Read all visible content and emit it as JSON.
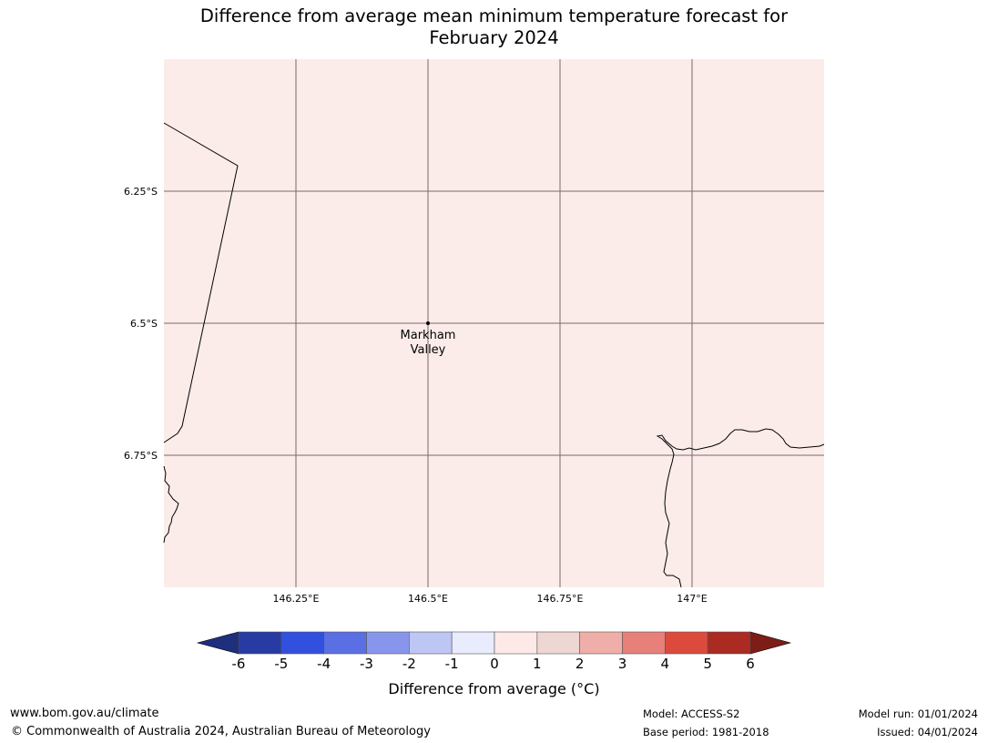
{
  "title_line1": "Difference from average mean minimum temperature forecast for",
  "title_line2": "February 2024",
  "map": {
    "lon_range": [
      146.0,
      147.25
    ],
    "lat_range": [
      -6.0,
      -7.0
    ],
    "background_color": "#fbecea",
    "lat_gridlines": [
      {
        "lat": -6.25,
        "label": "6.25°S"
      },
      {
        "lat": -6.5,
        "label": "6.5°S"
      },
      {
        "lat": -6.75,
        "label": "6.75°S"
      }
    ],
    "lon_gridlines": [
      {
        "lon": 146.25,
        "label": "146.25°E"
      },
      {
        "lon": 146.5,
        "label": "146.5°E"
      },
      {
        "lon": 146.75,
        "label": "146.75°E"
      },
      {
        "lon": 147.0,
        "label": "147°E"
      }
    ],
    "location": {
      "name_line1": "Markham",
      "name_line2": "Valley",
      "lon": 146.5,
      "lat": -6.5
    }
  },
  "colorbar": {
    "label": "Difference from average (°C)",
    "ticks": [
      "-6",
      "-5",
      "-4",
      "-3",
      "-2",
      "-1",
      "0",
      "1",
      "2",
      "3",
      "4",
      "5",
      "6"
    ],
    "bins": [
      "#273ba3",
      "#3150de",
      "#5a6fe4",
      "#8796ec",
      "#bec6f4",
      "#e9ecfc",
      "#fde9e8",
      "#eed6d2",
      "#efaea8",
      "#e68078",
      "#dc4a3e",
      "#ab2a21"
    ],
    "under_color": "#1e2f7e",
    "over_color": "#7d1d18"
  },
  "footer": {
    "website": "www.bom.gov.au/climate",
    "copyright": "© Commonwealth of Australia 2024, Australian Bureau of Meteorology",
    "model": "Model: ACCESS-S2",
    "base_period": "Base period: 1981-2018",
    "model_run": "Model run: 01/01/2024",
    "issued": "Issued: 04/01/2024"
  }
}
